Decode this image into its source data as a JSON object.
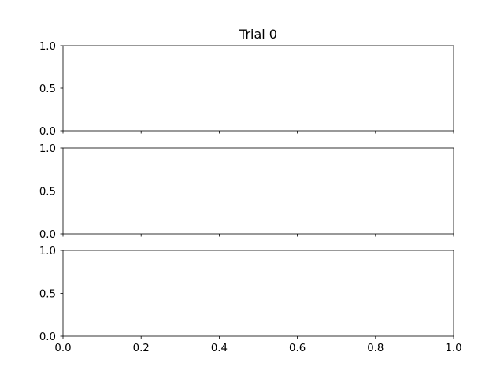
{
  "chart_data": {
    "type": "line",
    "title": "Trial 0",
    "xlabel": "",
    "ylabel": "",
    "grid": false,
    "legend": "none",
    "sharex": true,
    "subplots": [
      {
        "name": "subplot-1",
        "xlim": [
          0.0,
          1.0
        ],
        "ylim": [
          0.0,
          1.0
        ],
        "yticks": [
          0.0,
          0.5,
          1.0
        ],
        "ytick_labels": [
          "0.0",
          "0.5",
          "1.0"
        ],
        "xticks": [
          0.0,
          0.2,
          0.4,
          0.6,
          0.8,
          1.0
        ],
        "xtick_labels_visible": false,
        "series": []
      },
      {
        "name": "subplot-2",
        "xlim": [
          0.0,
          1.0
        ],
        "ylim": [
          0.0,
          1.0
        ],
        "yticks": [
          0.0,
          0.5,
          1.0
        ],
        "ytick_labels": [
          "0.0",
          "0.5",
          "1.0"
        ],
        "xticks": [
          0.0,
          0.2,
          0.4,
          0.6,
          0.8,
          1.0
        ],
        "xtick_labels_visible": false,
        "series": []
      },
      {
        "name": "subplot-3",
        "xlim": [
          0.0,
          1.0
        ],
        "ylim": [
          0.0,
          1.0
        ],
        "yticks": [
          0.0,
          0.5,
          1.0
        ],
        "ytick_labels": [
          "0.0",
          "0.5",
          "1.0"
        ],
        "xticks": [
          0.0,
          0.2,
          0.4,
          0.6,
          0.8,
          1.0
        ],
        "xtick_labels": [
          "0.0",
          "0.2",
          "0.4",
          "0.6",
          "0.8",
          "1.0"
        ],
        "xtick_labels_visible": true,
        "series": []
      }
    ]
  }
}
